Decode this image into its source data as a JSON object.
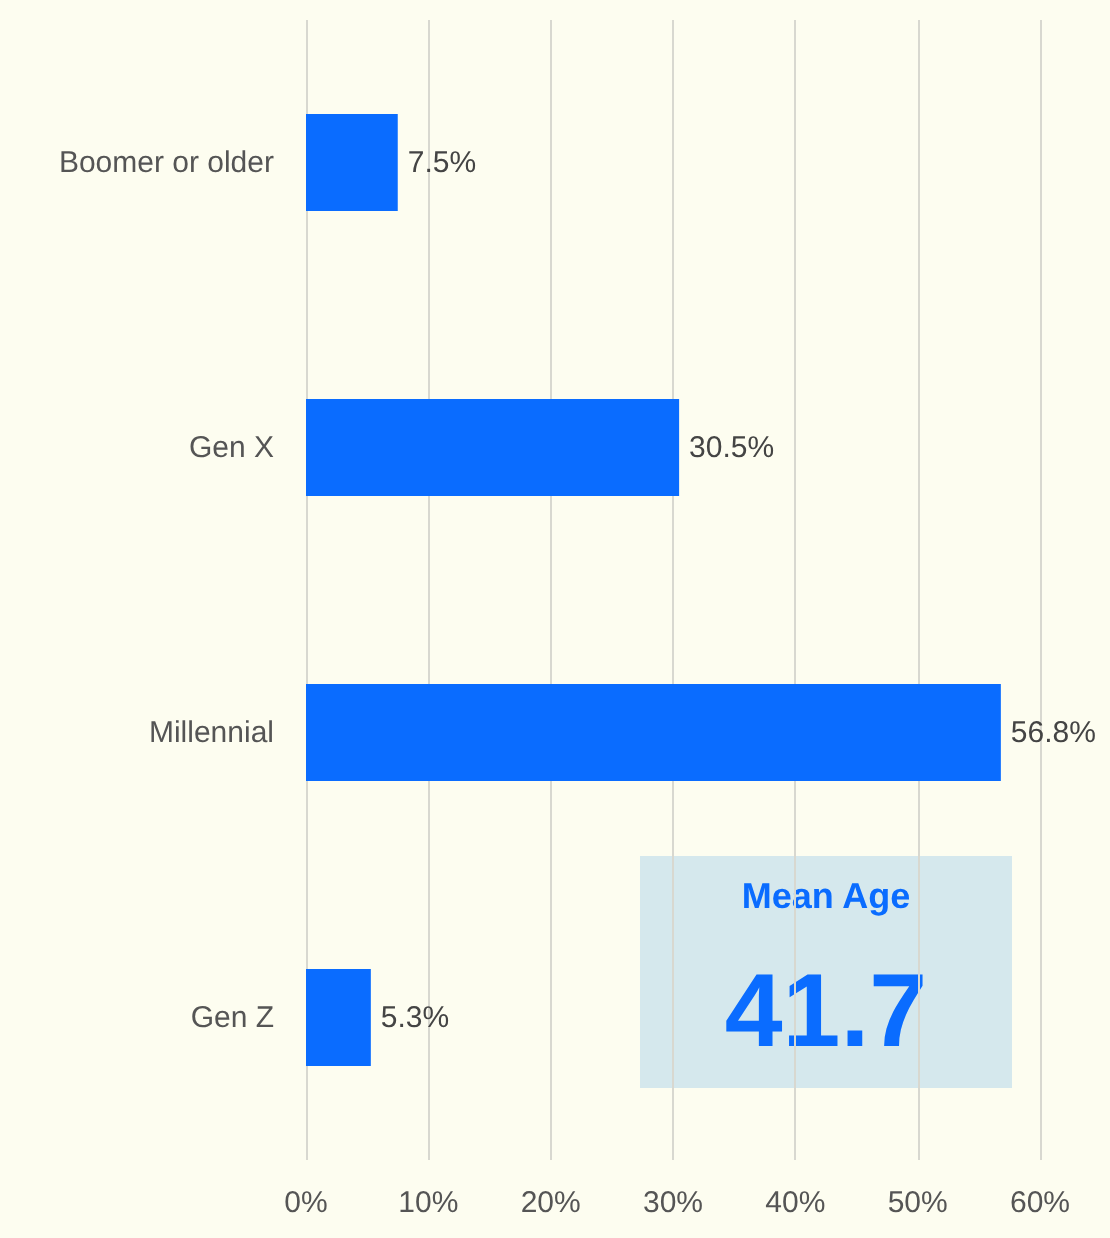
{
  "chart_data": {
    "type": "bar",
    "orientation": "horizontal",
    "categories": [
      "Boomer or older",
      "Gen X",
      "Millennial",
      "Gen Z"
    ],
    "values": [
      7.5,
      30.5,
      56.8,
      5.3
    ],
    "value_labels": [
      "7.5%",
      "30.5%",
      "56.8%",
      "5.3%"
    ],
    "color": "#0a6cff",
    "xlim": [
      0,
      60
    ],
    "xticks": [
      {
        "value": 0,
        "label": "0%"
      },
      {
        "value": 10,
        "label": "10%"
      },
      {
        "value": 20,
        "label": "20%"
      },
      {
        "value": 30,
        "label": "30%"
      },
      {
        "value": 40,
        "label": "40%"
      },
      {
        "value": 50,
        "label": "50%"
      },
      {
        "value": 60,
        "label": "60%"
      }
    ],
    "grid": "x",
    "annotations": [
      "Mean Age",
      "41.7"
    ]
  }
}
